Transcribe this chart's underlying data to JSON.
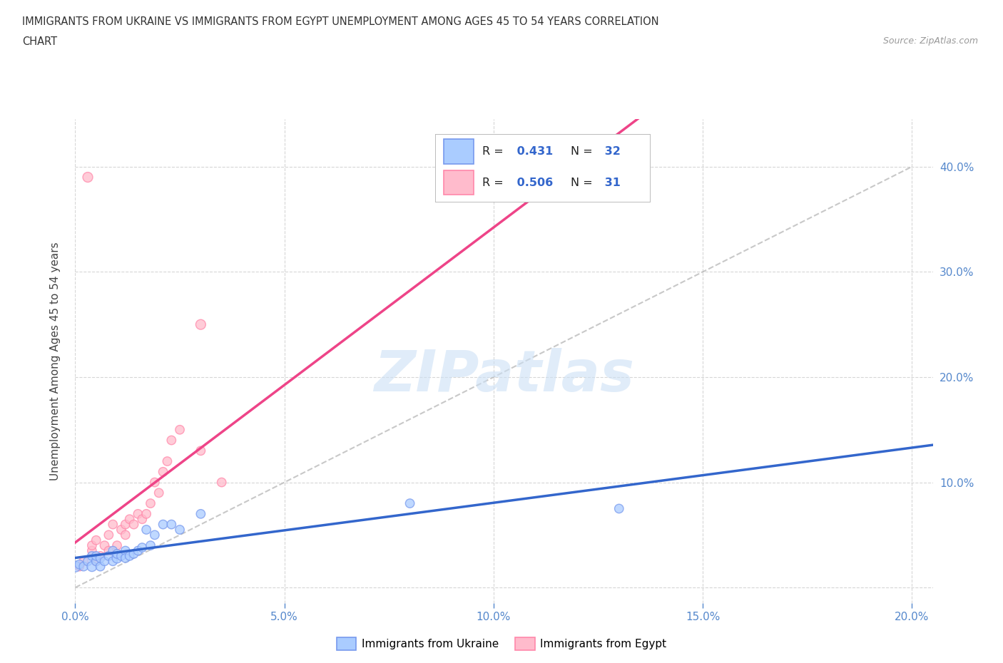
{
  "title_line1": "IMMIGRANTS FROM UKRAINE VS IMMIGRANTS FROM EGYPT UNEMPLOYMENT AMONG AGES 45 TO 54 YEARS CORRELATION",
  "title_line2": "CHART",
  "source": "Source: ZipAtlas.com",
  "ylabel": "Unemployment Among Ages 45 to 54 years",
  "ukraine_color": "#7799ee",
  "ukraine_color_fill": "#aaccff",
  "egypt_color": "#ff88aa",
  "egypt_color_fill": "#ffbbcc",
  "trend_ukraine_color": "#3366cc",
  "trend_egypt_color": "#ee4488",
  "trend_diagonal_color": "#bbbbbb",
  "background_color": "#ffffff",
  "grid_color": "#cccccc",
  "watermark_text": "ZIPatlas",
  "legend_ukraine_label": "Immigrants from Ukraine",
  "legend_egypt_label": "Immigrants from Egypt",
  "R_ukraine": 0.431,
  "N_ukraine": 32,
  "R_egypt": 0.506,
  "N_egypt": 31,
  "xlim": [
    0.0,
    0.205
  ],
  "ylim": [
    -0.015,
    0.445
  ],
  "xticks": [
    0.0,
    0.05,
    0.1,
    0.15,
    0.2
  ],
  "yticks": [
    0.0,
    0.1,
    0.2,
    0.3,
    0.4
  ],
  "xticklabels": [
    "0.0%",
    "5.0%",
    "10.0%",
    "15.0%",
    "20.0%"
  ],
  "yticklabels_right": [
    "",
    "10.0%",
    "20.0%",
    "30.0%",
    "40.0%"
  ],
  "ukraine_x": [
    0.0,
    0.001,
    0.002,
    0.003,
    0.004,
    0.004,
    0.005,
    0.005,
    0.006,
    0.006,
    0.007,
    0.008,
    0.009,
    0.009,
    0.01,
    0.01,
    0.011,
    0.012,
    0.012,
    0.013,
    0.014,
    0.015,
    0.016,
    0.017,
    0.018,
    0.019,
    0.021,
    0.023,
    0.025,
    0.03,
    0.08,
    0.13
  ],
  "ukraine_y": [
    0.02,
    0.022,
    0.02,
    0.025,
    0.02,
    0.03,
    0.025,
    0.03,
    0.02,
    0.028,
    0.025,
    0.03,
    0.025,
    0.035,
    0.028,
    0.032,
    0.03,
    0.035,
    0.028,
    0.03,
    0.032,
    0.035,
    0.038,
    0.055,
    0.04,
    0.05,
    0.06,
    0.06,
    0.055,
    0.07,
    0.08,
    0.075
  ],
  "egypt_x": [
    0.001,
    0.002,
    0.003,
    0.004,
    0.004,
    0.005,
    0.005,
    0.006,
    0.007,
    0.008,
    0.008,
    0.009,
    0.01,
    0.011,
    0.012,
    0.012,
    0.013,
    0.014,
    0.015,
    0.016,
    0.017,
    0.018,
    0.019,
    0.02,
    0.021,
    0.022,
    0.023,
    0.025,
    0.03,
    0.035,
    0.03
  ],
  "egypt_y": [
    0.02,
    0.025,
    0.39,
    0.035,
    0.04,
    0.025,
    0.045,
    0.03,
    0.04,
    0.035,
    0.05,
    0.06,
    0.04,
    0.055,
    0.06,
    0.05,
    0.065,
    0.06,
    0.07,
    0.065,
    0.07,
    0.08,
    0.1,
    0.09,
    0.11,
    0.12,
    0.14,
    0.15,
    0.13,
    0.1,
    0.25
  ],
  "ukraine_sizes": [
    120,
    80,
    80,
    80,
    100,
    80,
    80,
    80,
    80,
    80,
    80,
    80,
    80,
    80,
    100,
    80,
    80,
    80,
    80,
    80,
    80,
    80,
    80,
    80,
    80,
    80,
    80,
    80,
    80,
    80,
    80,
    80
  ],
  "egypt_sizes": [
    80,
    80,
    100,
    80,
    80,
    80,
    80,
    80,
    80,
    80,
    80,
    80,
    80,
    80,
    80,
    80,
    80,
    80,
    80,
    80,
    80,
    80,
    80,
    80,
    80,
    80,
    80,
    80,
    80,
    80,
    100
  ]
}
